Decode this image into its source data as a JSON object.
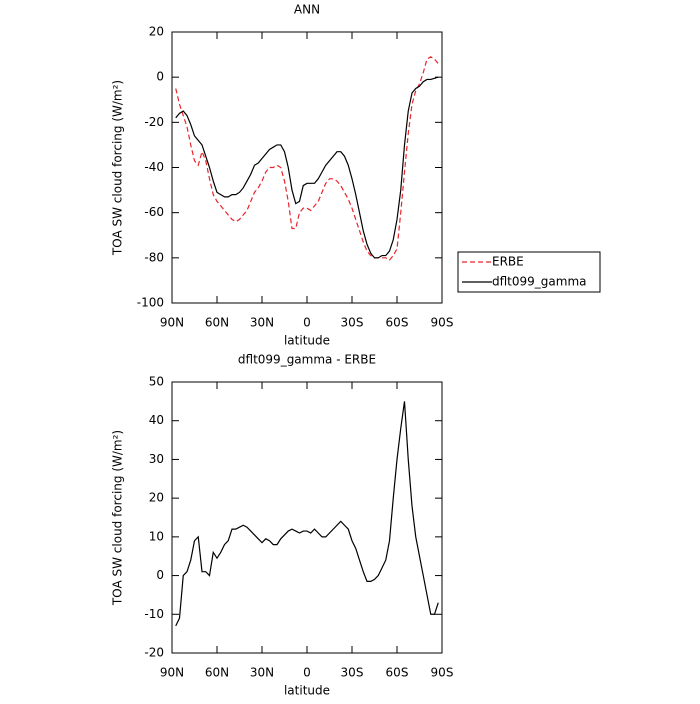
{
  "chart_data": [
    {
      "type": "line",
      "title": "ANN",
      "xlabel": "latitude",
      "ylabel": "TOA SW cloud forcing (W/m²)",
      "xlim": [
        90,
        -90
      ],
      "xticks": [
        {
          "value": 90,
          "label": "90N"
        },
        {
          "value": 60,
          "label": "60N"
        },
        {
          "value": 30,
          "label": "30N"
        },
        0,
        {
          "value": -30,
          "label": "30S"
        },
        {
          "value": -60,
          "label": "60S"
        },
        {
          "value": -90,
          "label": "90S"
        }
      ],
      "ylim": [
        -100,
        20
      ],
      "yticks": [
        -100,
        -80,
        -60,
        -40,
        -20,
        0,
        20
      ],
      "legend": "right",
      "x": [
        87.5,
        85,
        82.5,
        80,
        77.5,
        75,
        72.5,
        70,
        67.5,
        65,
        62.5,
        60,
        57.5,
        55,
        52.5,
        50,
        47.5,
        45,
        42.5,
        40,
        37.5,
        35,
        32.5,
        30,
        27.5,
        25,
        22.5,
        20,
        17.5,
        15,
        12.5,
        10,
        7.5,
        5,
        2.5,
        0,
        -2.5,
        -5,
        -7.5,
        -10,
        -12.5,
        -15,
        -17.5,
        -20,
        -22.5,
        -25,
        -27.5,
        -30,
        -32.5,
        -35,
        -37.5,
        -40,
        -42.5,
        -45,
        -47.5,
        -50,
        -52.5,
        -55,
        -57.5,
        -60,
        -62.5,
        -65,
        -67.5,
        -70,
        -72.5,
        -75,
        -77.5,
        -80,
        -82.5,
        -85,
        -87.5
      ],
      "series": [
        {
          "name": "ERBE",
          "color": "#e8242a",
          "dash": true,
          "values": [
            -5,
            -12,
            -17,
            -22,
            -30,
            -37,
            -39,
            -33,
            -37,
            -45,
            -52,
            -55,
            -57,
            -59,
            -61,
            -63,
            -64,
            -63,
            -61,
            -59,
            -55,
            -51,
            -49,
            -46,
            -42,
            -40,
            -40,
            -39,
            -40,
            -46,
            -55,
            -67,
            -67,
            -60,
            -58,
            -58,
            -59,
            -57,
            -55,
            -51,
            -47,
            -45,
            -45,
            -46,
            -48,
            -51,
            -54,
            -58,
            -63,
            -68,
            -73,
            -77,
            -79,
            -80,
            -80,
            -80,
            -80,
            -81,
            -79,
            -76,
            -60,
            -42,
            -25,
            -12,
            -6,
            -3,
            2,
            8,
            9,
            8,
            6
          ]
        },
        {
          "name": "dflt099_gamma",
          "color": "#000000",
          "dash": false,
          "values": [
            -18,
            -16,
            -15,
            -17,
            -21,
            -26,
            -28,
            -30,
            -35,
            -40,
            -46,
            -51,
            -52,
            -53,
            -53,
            -52,
            -52,
            -51,
            -49,
            -46,
            -43,
            -39,
            -38,
            -36,
            -34,
            -32,
            -31,
            -30,
            -30,
            -33,
            -40,
            -50,
            -56,
            -55,
            -48,
            -47,
            -47,
            -47,
            -45,
            -42,
            -39,
            -37,
            -35,
            -33,
            -33,
            -35,
            -39,
            -45,
            -52,
            -60,
            -68,
            -74,
            -78,
            -80,
            -80,
            -79,
            -79,
            -77,
            -72,
            -63,
            -50,
            -30,
            -15,
            -7,
            -5,
            -4,
            -2,
            -1,
            -1,
            -0.5,
            0
          ]
        }
      ]
    },
    {
      "type": "line",
      "title": "dflt099_gamma - ERBE",
      "xlabel": "latitude",
      "ylabel": "TOA SW cloud forcing (W/m²)",
      "xlim": [
        90,
        -90
      ],
      "xticks": [
        {
          "value": 90,
          "label": "90N"
        },
        {
          "value": 60,
          "label": "60N"
        },
        {
          "value": 30,
          "label": "30N"
        },
        0,
        {
          "value": -30,
          "label": "30S"
        },
        {
          "value": -60,
          "label": "60S"
        },
        {
          "value": -90,
          "label": "90S"
        }
      ],
      "ylim": [
        -20,
        50
      ],
      "yticks": [
        -20,
        -10,
        0,
        10,
        20,
        30,
        40,
        50
      ],
      "x": [
        87.5,
        85,
        82.5,
        80,
        77.5,
        75,
        72.5,
        70,
        67.5,
        65,
        62.5,
        60,
        57.5,
        55,
        52.5,
        50,
        47.5,
        45,
        42.5,
        40,
        37.5,
        35,
        32.5,
        30,
        27.5,
        25,
        22.5,
        20,
        17.5,
        15,
        12.5,
        10,
        7.5,
        5,
        2.5,
        0,
        -2.5,
        -5,
        -7.5,
        -10,
        -12.5,
        -15,
        -17.5,
        -20,
        -22.5,
        -25,
        -27.5,
        -30,
        -32.5,
        -35,
        -37.5,
        -40,
        -42.5,
        -45,
        -47.5,
        -50,
        -52.5,
        -55,
        -57.5,
        -60,
        -62.5,
        -65,
        -67.5,
        -70,
        -72.5,
        -75,
        -77.5,
        -80,
        -82.5,
        -85,
        -87.5
      ],
      "series": [
        {
          "color": "#000000",
          "dash": false,
          "values": [
            -13,
            -11,
            0,
            1,
            4,
            9,
            10,
            1,
            1,
            0,
            6,
            4.5,
            6,
            8,
            9,
            12,
            12,
            12.5,
            13,
            12.5,
            11.5,
            10.5,
            9.5,
            8.5,
            9.5,
            9,
            8,
            8,
            9.5,
            10.5,
            11.5,
            12,
            11.5,
            11,
            11.5,
            11.5,
            11,
            12,
            11,
            10,
            10,
            11,
            12,
            13,
            14,
            13,
            12,
            9,
            7,
            4,
            1,
            -1.5,
            -1.5,
            -1,
            0,
            2,
            4,
            9,
            20,
            30,
            38,
            45,
            30,
            18,
            10,
            5,
            0,
            -5,
            -10,
            -10,
            -7
          ]
        }
      ]
    }
  ]
}
